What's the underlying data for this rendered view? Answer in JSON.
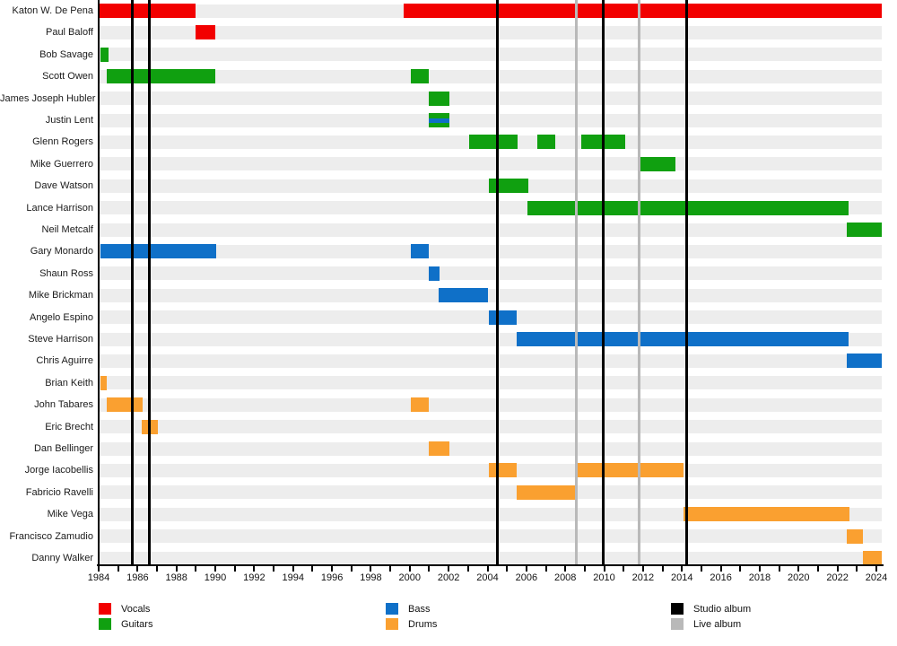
{
  "chart_data": {
    "type": "gantt",
    "subject": "band-members-timeline",
    "x_axis": {
      "label_start": 1984,
      "label_end": 2024,
      "label_step": 2,
      "minor_step": 1,
      "tick_labels": [
        "1984",
        "1986",
        "1988",
        "1990",
        "1992",
        "1994",
        "1996",
        "1998",
        "2000",
        "2002",
        "2004",
        "2006",
        "2008",
        "2010",
        "2012",
        "2014",
        "2016",
        "2018",
        "2020",
        "2022",
        "2024"
      ],
      "domain_start": 1984.0,
      "domain_end": 2024.28
    },
    "role_colors": {
      "Vocals": "#f20000",
      "Guitars": "#10a010",
      "Bass": "#0f70c8",
      "Drums": "#faa030"
    },
    "members": [
      {
        "name": "Katon W. De Pena",
        "roles": [
          "Vocals"
        ],
        "stints": [
          [
            1984.0,
            1989.0
          ],
          [
            1999.7,
            2024.28
          ]
        ]
      },
      {
        "name": "Paul Baloff",
        "roles": [
          "Vocals"
        ],
        "stints": [
          [
            1989.0,
            1990.0
          ]
        ]
      },
      {
        "name": "Bob Savage",
        "roles": [
          "Guitars"
        ],
        "stints": [
          [
            1984.1,
            1984.5
          ]
        ]
      },
      {
        "name": "Scott Owen",
        "roles": [
          "Guitars"
        ],
        "stints": [
          [
            1984.4,
            1990.0
          ],
          [
            2000.05,
            2001.0
          ]
        ]
      },
      {
        "name": "James Joseph Hubler",
        "roles": [
          "Guitars"
        ],
        "stints": [
          [
            2001.0,
            2002.05
          ]
        ]
      },
      {
        "name": "Justin Lent",
        "roles": [
          "Guitars",
          "Bass"
        ],
        "stints": [
          [
            2001.0,
            2002.05
          ]
        ]
      },
      {
        "name": "Glenn Rogers",
        "roles": [
          "Guitars"
        ],
        "stints": [
          [
            2003.05,
            2005.55
          ],
          [
            2006.55,
            2007.5
          ],
          [
            2008.8,
            2011.1
          ]
        ]
      },
      {
        "name": "Mike Guerrero",
        "roles": [
          "Guitars"
        ],
        "stints": [
          [
            2011.85,
            2013.65
          ]
        ]
      },
      {
        "name": "Dave Watson",
        "roles": [
          "Guitars"
        ],
        "stints": [
          [
            2004.05,
            2006.1
          ]
        ]
      },
      {
        "name": "Lance Harrison",
        "roles": [
          "Guitars"
        ],
        "stints": [
          [
            2006.05,
            2022.55
          ]
        ]
      },
      {
        "name": "Neil Metcalf",
        "roles": [
          "Guitars"
        ],
        "stints": [
          [
            2022.5,
            2024.28
          ]
        ]
      },
      {
        "name": "Gary Monardo",
        "roles": [
          "Bass"
        ],
        "stints": [
          [
            1984.1,
            1990.05
          ],
          [
            2000.05,
            2001.0
          ]
        ]
      },
      {
        "name": "Shaun Ross",
        "roles": [
          "Bass"
        ],
        "stints": [
          [
            2001.0,
            2001.55
          ]
        ]
      },
      {
        "name": "Mike Brickman",
        "roles": [
          "Bass"
        ],
        "stints": [
          [
            2001.5,
            2004.0
          ]
        ]
      },
      {
        "name": "Angelo Espino",
        "roles": [
          "Bass"
        ],
        "stints": [
          [
            2004.05,
            2005.5
          ]
        ]
      },
      {
        "name": "Steve Harrison",
        "roles": [
          "Bass"
        ],
        "stints": [
          [
            2005.5,
            2022.55
          ]
        ]
      },
      {
        "name": "Chris Aguirre",
        "roles": [
          "Bass"
        ],
        "stints": [
          [
            2022.5,
            2024.28
          ]
        ]
      },
      {
        "name": "Brian Keith",
        "roles": [
          "Drums"
        ],
        "stints": [
          [
            1984.1,
            1984.4
          ]
        ]
      },
      {
        "name": "John Tabares",
        "roles": [
          "Drums"
        ],
        "stints": [
          [
            1984.4,
            1986.25
          ],
          [
            2000.05,
            2001.0
          ]
        ]
      },
      {
        "name": "Eric Brecht",
        "roles": [
          "Drums"
        ],
        "stints": [
          [
            1986.2,
            1987.05
          ]
        ]
      },
      {
        "name": "Dan Bellinger",
        "roles": [
          "Drums"
        ],
        "stints": [
          [
            2001.0,
            2002.05
          ]
        ]
      },
      {
        "name": "Jorge Iacobellis",
        "roles": [
          "Drums"
        ],
        "stints": [
          [
            2004.05,
            2005.5
          ],
          [
            2008.55,
            2014.1
          ]
        ]
      },
      {
        "name": "Fabricio Ravelli",
        "roles": [
          "Drums"
        ],
        "stints": [
          [
            2005.5,
            2008.55
          ]
        ]
      },
      {
        "name": "Mike Vega",
        "roles": [
          "Drums"
        ],
        "stints": [
          [
            2014.1,
            2022.6
          ]
        ]
      },
      {
        "name": "Francisco Zamudio",
        "roles": [
          "Drums"
        ],
        "stints": [
          [
            2022.5,
            2023.3
          ]
        ]
      },
      {
        "name": "Danny Walker",
        "roles": [
          "Drums"
        ],
        "stints": [
          [
            2023.3,
            2024.28
          ]
        ]
      }
    ],
    "albums": {
      "studio": {
        "label": "Studio album",
        "color": "#000000",
        "years": [
          1985.75,
          1986.6,
          2004.5,
          2009.95,
          2014.25
        ]
      },
      "live": {
        "label": "Live album",
        "color": "#b9b9b9",
        "years": [
          2008.55,
          2011.8
        ]
      }
    },
    "legend_position": "bottom",
    "grid": "off"
  },
  "legend": {
    "columns": [
      [
        {
          "label": "Vocals",
          "color": "#f20000"
        },
        {
          "label": "Guitars",
          "color": "#10a010"
        }
      ],
      [
        {
          "label": "Bass",
          "color": "#0f70c8"
        },
        {
          "label": "Drums",
          "color": "#faa030"
        }
      ],
      [
        {
          "label": "Studio album",
          "color": "#000000"
        },
        {
          "label": "Live album",
          "color": "#b9b9b9"
        }
      ]
    ]
  }
}
